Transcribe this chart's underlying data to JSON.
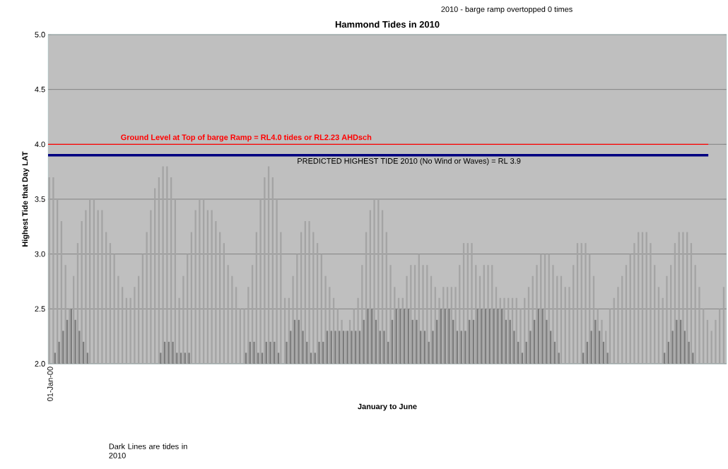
{
  "chart_data": {
    "type": "bar",
    "title": "Hammond Tides in 2010",
    "xlabel": "January to June",
    "ylabel": "Highest Tide that Day LAT",
    "annotations": [
      "2010 -  barge ramp overtopped 0 times",
      "Dark Lines are tides in 2010"
    ],
    "categories": [
      "01-Jan-00",
      null,
      null,
      null,
      null,
      null,
      null,
      null,
      null,
      null,
      null,
      null,
      null,
      null,
      null,
      null,
      null,
      null,
      null,
      null,
      null,
      null,
      null,
      null,
      null,
      null,
      null,
      null,
      null,
      null,
      null,
      null,
      null,
      null,
      null,
      null,
      null,
      null,
      null,
      null,
      null,
      null,
      null,
      null,
      null,
      null,
      null,
      null,
      null,
      null,
      null,
      null,
      null,
      null,
      null,
      null,
      null,
      null,
      null,
      null,
      null,
      null,
      null,
      null,
      null,
      null,
      null,
      null,
      null,
      null,
      null,
      null,
      null,
      null,
      null,
      null,
      null,
      null,
      null,
      null,
      null,
      null,
      null,
      null,
      null,
      null,
      null,
      null,
      null,
      null,
      null,
      null,
      null,
      null,
      null,
      null,
      null,
      null,
      null,
      null,
      null,
      null,
      null,
      null,
      null,
      null,
      null,
      null,
      null,
      null,
      null,
      null,
      null,
      null,
      null,
      null,
      null,
      null,
      null,
      null,
      null,
      null,
      null,
      null,
      null,
      null,
      null,
      null,
      null,
      null,
      null,
      null,
      null,
      null,
      null,
      null,
      null,
      null,
      null,
      null,
      null,
      null,
      null,
      null,
      null,
      null,
      null,
      null,
      null,
      null,
      null,
      null,
      null,
      null,
      null,
      null,
      null,
      null,
      null,
      null,
      null,
      null,
      null,
      null,
      null,
      null,
      null
    ],
    "series": [
      {
        "color": "#a4a4a4",
        "values": [
          3.7,
          3.7,
          3.5,
          3.3,
          2.9,
          2.5,
          2.8,
          3.1,
          3.3,
          3.4,
          3.5,
          3.5,
          3.4,
          3.4,
          3.2,
          3.1,
          3.0,
          2.8,
          2.7,
          2.6,
          2.6,
          2.7,
          2.8,
          3.0,
          3.2,
          3.4,
          3.6,
          3.7,
          3.8,
          3.8,
          3.7,
          3.5,
          2.6,
          2.8,
          3.0,
          3.2,
          3.4,
          3.5,
          3.5,
          3.4,
          3.4,
          3.3,
          3.2,
          3.1,
          2.9,
          2.8,
          2.7,
          2.5,
          2.5,
          2.7,
          2.9,
          3.2,
          3.5,
          3.7,
          3.8,
          3.7,
          3.5,
          3.2,
          2.6,
          2.6,
          2.8,
          3.0,
          3.2,
          3.3,
          3.3,
          3.2,
          3.1,
          3.0,
          2.8,
          2.7,
          2.6,
          2.5,
          2.4,
          2.3,
          2.4,
          2.5,
          2.6,
          2.9,
          3.2,
          3.4,
          3.5,
          3.5,
          3.4,
          3.2,
          2.9,
          2.7,
          2.6,
          2.6,
          2.8,
          2.9,
          2.9,
          3.0,
          2.9,
          2.9,
          2.8,
          2.7,
          2.6,
          2.7,
          2.7,
          2.7,
          2.7,
          2.9,
          3.1,
          3.1,
          3.1,
          2.9,
          2.8,
          2.9,
          2.9,
          2.9,
          2.7,
          2.6,
          2.6,
          2.6,
          2.6,
          2.6,
          2.5,
          2.6,
          2.7,
          2.8,
          2.9,
          3.0,
          3.0,
          3.0,
          2.9,
          2.8,
          2.8,
          2.7,
          2.7,
          2.9,
          3.1,
          3.1,
          3.1,
          3.0,
          2.8,
          2.5,
          2.4,
          2.3,
          2.5,
          2.6,
          2.7,
          2.8,
          2.9,
          3.0,
          3.1,
          3.2,
          3.2,
          3.2,
          3.1,
          2.9,
          2.7,
          2.6,
          2.8,
          2.9,
          3.1,
          3.2,
          3.2,
          3.2,
          3.1,
          2.9,
          2.7,
          2.5,
          2.4,
          2.3,
          2.4,
          2.5,
          2.7
        ]
      },
      {
        "color": "#7c7c7c",
        "values": [
          2.0,
          2.1,
          2.2,
          2.3,
          2.4,
          2.5,
          2.4,
          2.3,
          2.2,
          2.1,
          null,
          null,
          null,
          null,
          null,
          null,
          null,
          null,
          null,
          null,
          null,
          null,
          null,
          null,
          null,
          null,
          null,
          2.1,
          2.2,
          2.2,
          2.2,
          2.1,
          2.1,
          2.1,
          2.1,
          null,
          null,
          null,
          null,
          null,
          null,
          null,
          null,
          null,
          null,
          null,
          null,
          null,
          2.1,
          2.2,
          2.2,
          2.1,
          2.1,
          2.2,
          2.2,
          2.2,
          2.1,
          null,
          2.2,
          2.3,
          2.4,
          2.4,
          2.3,
          2.2,
          2.1,
          2.1,
          2.2,
          2.2,
          2.3,
          2.3,
          2.3,
          2.3,
          2.3,
          2.3,
          2.3,
          2.3,
          2.3,
          2.4,
          2.5,
          2.5,
          2.4,
          2.3,
          2.3,
          2.2,
          2.4,
          2.5,
          2.5,
          2.5,
          2.5,
          2.4,
          2.4,
          2.3,
          2.3,
          2.2,
          2.3,
          2.4,
          2.5,
          2.5,
          2.5,
          2.4,
          2.3,
          2.3,
          2.3,
          2.4,
          2.4,
          2.5,
          2.5,
          2.5,
          2.5,
          2.5,
          2.5,
          2.5,
          2.4,
          2.4,
          2.3,
          2.2,
          2.1,
          2.2,
          2.3,
          2.4,
          2.5,
          2.5,
          2.4,
          2.3,
          2.2,
          2.1,
          null,
          null,
          null,
          null,
          null,
          2.1,
          2.2,
          2.3,
          2.4,
          2.3,
          2.2,
          2.1,
          null,
          null,
          null,
          null,
          null,
          null,
          null,
          null,
          null,
          null,
          null,
          null,
          null,
          2.1,
          2.2,
          2.3,
          2.4,
          2.4,
          2.3,
          2.2,
          2.1,
          null,
          null,
          null,
          null,
          null,
          null,
          null,
          null
        ]
      }
    ],
    "ylim": [
      2.0,
      5.0
    ],
    "yticks": [
      {
        "value": 2.0,
        "label": "2.0"
      },
      {
        "value": 2.5,
        "label": "2.5"
      },
      {
        "value": 3.0,
        "label": "3.0"
      },
      {
        "value": 3.5,
        "label": "3.5"
      },
      {
        "value": 4.0,
        "label": "4.0"
      },
      {
        "value": 4.5,
        "label": "4.5"
      },
      {
        "value": 5.0,
        "label": "5.0"
      }
    ],
    "grid": "y",
    "ref_lines": [
      {
        "axis": "y",
        "value": 4.0,
        "label": "Ground Level  at Top of barge Ramp =  RL4.0 tides or RL2.23 AHDsch",
        "color": "#ff0000"
      },
      {
        "axis": "y",
        "value": 3.9,
        "label": "PREDICTED HIGHEST TIDE 2010  (No Wind or Waves) = RL 3.9",
        "color": "#000080"
      }
    ]
  }
}
